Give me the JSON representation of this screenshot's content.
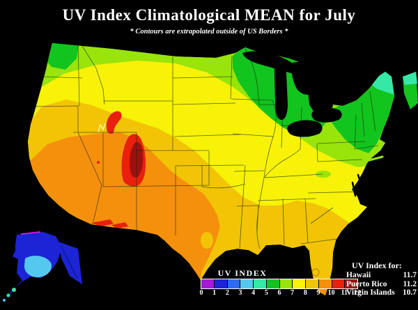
{
  "header": {
    "title": "UV Index Climatological MEAN for July",
    "subtitle": "* Contours are extrapolated outside of US Borders *"
  },
  "legend": {
    "label": "UV INDEX",
    "ticks": [
      "0",
      "1",
      "2",
      "3",
      "4",
      "5",
      "6",
      "7",
      "8",
      "9",
      "10",
      "11",
      "12"
    ],
    "cell_colors": [
      "#A21CD6",
      "#1C24D6",
      "#2E6AF0",
      "#55C8F0",
      "#35E8A8",
      "#12C41E",
      "#98E40B",
      "#F7F208",
      "#F2C405",
      "#F5900D",
      "#E8200D",
      "#9E1010"
    ]
  },
  "uv_table": {
    "heading": "UV Index for:",
    "rows": [
      {
        "name": "Hawaii",
        "value": "11.7"
      },
      {
        "name": "Puerto Rico",
        "value": "11.2"
      },
      {
        "name": "Virgin Islands",
        "value": "10.7"
      }
    ]
  },
  "map": {
    "palette": {
      "purple": "#A21CD6",
      "blue": "#1C24D6",
      "royal_blue": "#2E6AF0",
      "sky_blue": "#55C8F0",
      "spring_green": "#35E8A8",
      "green": "#12C41E",
      "yellow_green": "#98E40B",
      "yellow": "#F7F208",
      "gold": "#F2C405",
      "orange": "#F5900D",
      "red": "#E8200D",
      "dark_red": "#9E1010",
      "magenta": "#C81CD6",
      "background": "#000000",
      "state_line": "#142800",
      "lake": "#000000",
      "salt_lake_outline": "#FFF8A0",
      "florida_ring": "#C79205"
    }
  }
}
